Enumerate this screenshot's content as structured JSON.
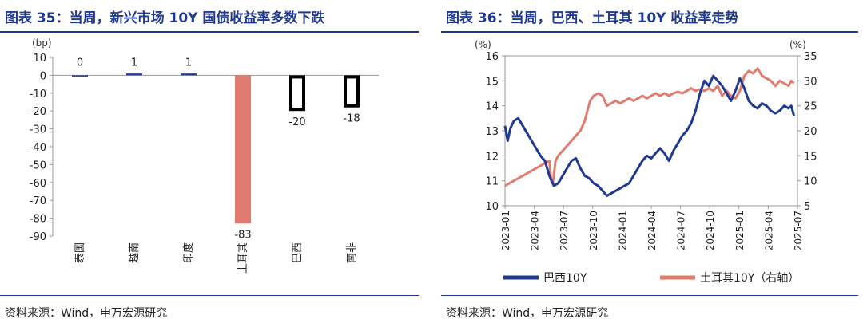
{
  "left": {
    "title": "图表 35：当周，新兴市场 10Y 国债收益率多数下跌",
    "source": "资料来源：Wind，申万宏源研究"
  },
  "right": {
    "title": "图表 36：当周，巴西、土耳其 10Y 收益率走势",
    "source": "资料来源：Wind，申万宏源研究"
  },
  "chart_data": [
    {
      "type": "bar",
      "unit": "(bp)",
      "categories": [
        "泰国",
        "越南",
        "印度",
        "土耳其",
        "巴西",
        "南非"
      ],
      "values": [
        0,
        1,
        1,
        -83,
        -20,
        -18
      ],
      "ylim": [
        -90,
        10
      ],
      "yticks": [
        10,
        0,
        -10,
        -20,
        -30,
        -40,
        -50,
        -60,
        -70,
        -80,
        -90
      ],
      "colors": [
        "#1f3a93",
        "#1f3a93",
        "#1f3a93",
        "#e07b6e",
        "#ffffff",
        "#ffffff"
      ],
      "outlined": [
        false,
        false,
        false,
        false,
        true,
        true
      ]
    },
    {
      "type": "line",
      "left_unit": "(%)",
      "right_unit": "(%)",
      "ylim": [
        10,
        16
      ],
      "yticks": [
        10,
        11,
        12,
        13,
        14,
        15,
        16
      ],
      "y2lim": [
        5,
        35
      ],
      "y2ticks": [
        5,
        10,
        15,
        20,
        25,
        30,
        35
      ],
      "xticks": [
        "2023-01",
        "2023-04",
        "2023-07",
        "2023-10",
        "2024-01",
        "2024-04",
        "2024-07",
        "2024-10",
        "2025-01",
        "2025-04",
        "2025-07"
      ],
      "xlim": [
        0,
        33
      ],
      "series": [
        {
          "name": "巴西10Y",
          "axis": "left",
          "color": "#1f3a93",
          "x": [
            0,
            0.3,
            0.6,
            1,
            1.5,
            2,
            2.5,
            3,
            3.5,
            4,
            4.5,
            5,
            5.5,
            6,
            6.5,
            7,
            7.5,
            8,
            8.5,
            9,
            9.5,
            10,
            10.5,
            11,
            11.5,
            12,
            12.5,
            13,
            13.5,
            14,
            14.5,
            15,
            15.5,
            16,
            16.5,
            17,
            17.5,
            18,
            18.5,
            19,
            19.5,
            20,
            20.5,
            21,
            21.5,
            22,
            22.5,
            23,
            23.5,
            24,
            24.5,
            25,
            25.5,
            26,
            26.5,
            27,
            27.5,
            28,
            28.5,
            29,
            29.5,
            30,
            30.5,
            31,
            31.5,
            32,
            32.3,
            32.6
          ],
          "values": [
            13.2,
            12.6,
            13.1,
            13.4,
            13.5,
            13.2,
            12.9,
            12.6,
            12.3,
            12.0,
            11.8,
            11.2,
            10.8,
            10.9,
            11.2,
            11.5,
            11.8,
            11.9,
            11.5,
            11.2,
            11.1,
            10.9,
            10.8,
            10.6,
            10.4,
            10.5,
            10.6,
            10.7,
            10.8,
            10.9,
            11.2,
            11.5,
            11.8,
            12.0,
            11.9,
            12.1,
            12.3,
            12.1,
            11.8,
            12.2,
            12.5,
            12.8,
            13.0,
            13.3,
            13.8,
            14.5,
            15.0,
            14.8,
            15.2,
            15.0,
            14.8,
            14.5,
            14.2,
            14.6,
            15.1,
            14.7,
            14.2,
            14.0,
            13.9,
            14.1,
            14.0,
            13.8,
            13.7,
            13.8,
            14.0,
            13.9,
            14.0,
            13.6
          ]
        },
        {
          "name": "土耳其10Y（右轴）",
          "axis": "right",
          "color": "#e07b6e",
          "x": [
            0,
            0.5,
            1,
            1.5,
            2,
            2.5,
            3,
            3.5,
            4,
            4.5,
            5,
            5.2,
            5.4,
            5.7,
            6,
            6.5,
            7,
            7.5,
            8,
            8.5,
            9,
            9.3,
            9.6,
            10,
            10.5,
            11,
            11.5,
            12,
            12.5,
            13,
            13.5,
            14,
            14.5,
            15,
            15.5,
            16,
            16.5,
            17,
            17.5,
            18,
            18.5,
            19,
            19.5,
            20,
            20.5,
            21,
            21.5,
            22,
            22.5,
            23,
            23.5,
            24,
            24.5,
            25,
            25.5,
            26,
            26.5,
            27,
            27.5,
            28,
            28.5,
            29,
            29.5,
            30,
            30.5,
            31,
            31.5,
            32,
            32.3,
            32.6
          ],
          "values": [
            9.0,
            9.5,
            10.0,
            10.5,
            11.0,
            11.5,
            12.0,
            12.5,
            13.0,
            13.5,
            14.0,
            10.0,
            9.5,
            14.0,
            15.0,
            16.0,
            17.0,
            18.0,
            19.0,
            20.0,
            22.0,
            24.0,
            26.0,
            27.0,
            27.5,
            27.0,
            25.0,
            25.5,
            26.0,
            25.5,
            26.0,
            26.5,
            26.0,
            26.5,
            27.0,
            26.5,
            27.0,
            27.5,
            27.0,
            27.5,
            27.0,
            27.5,
            27.8,
            27.5,
            28.0,
            28.5,
            28.0,
            28.3,
            28.0,
            28.5,
            28.0,
            29.0,
            27.0,
            28.0,
            27.0,
            26.5,
            28.0,
            31.0,
            32.0,
            31.5,
            32.5,
            31.0,
            30.5,
            30.0,
            29.0,
            30.0,
            29.5,
            29.0,
            30.0,
            29.5
          ]
        }
      ]
    }
  ]
}
